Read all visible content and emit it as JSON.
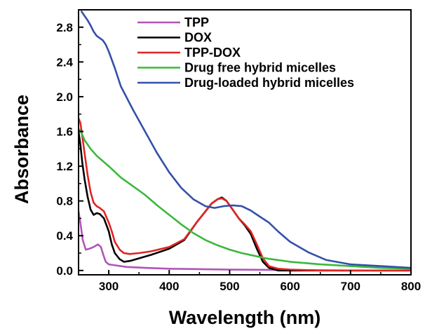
{
  "chart_data": {
    "type": "line",
    "title": "",
    "xlabel": "Wavelength (nm)",
    "ylabel": "Absorbance",
    "xlim": [
      250,
      800
    ],
    "ylim": [
      -0.05,
      3.0
    ],
    "xticks": [
      300,
      400,
      500,
      600,
      700,
      800
    ],
    "xtick_labels": [
      "300",
      "400",
      "500",
      "600",
      "700",
      "800"
    ],
    "yticks": [
      0.0,
      0.4,
      0.8,
      1.2,
      1.6,
      2.0,
      2.4,
      2.8
    ],
    "ytick_labels": [
      "0.0",
      "0.4",
      "0.8",
      "1.2",
      "1.6",
      "2.0",
      "2.4",
      "2.8"
    ],
    "grid": false,
    "legend_position": "top-right",
    "series": [
      {
        "name": "TPP",
        "color": "#b054b8",
        "x": [
          250,
          253,
          257,
          262,
          268,
          275,
          282,
          287,
          291,
          295,
          300,
          310,
          330,
          360,
          400,
          450,
          500,
          600,
          700,
          800
        ],
        "y": [
          0.68,
          0.55,
          0.35,
          0.24,
          0.25,
          0.27,
          0.3,
          0.27,
          0.18,
          0.1,
          0.07,
          0.06,
          0.04,
          0.03,
          0.02,
          0.015,
          0.01,
          0.005,
          0.0,
          0.0
        ]
      },
      {
        "name": "DOX",
        "color": "#000000",
        "x": [
          250,
          253,
          256,
          260,
          265,
          270,
          275,
          280,
          285,
          292,
          300,
          305,
          310,
          318,
          325,
          335,
          350,
          370,
          400,
          425,
          445,
          460,
          470,
          480,
          487,
          495,
          505,
          515,
          525,
          535,
          545,
          555,
          565,
          580,
          600,
          650,
          700,
          800
        ],
        "y": [
          1.6,
          1.45,
          1.25,
          1.05,
          0.85,
          0.7,
          0.64,
          0.66,
          0.65,
          0.6,
          0.45,
          0.3,
          0.2,
          0.13,
          0.1,
          0.11,
          0.14,
          0.18,
          0.25,
          0.35,
          0.55,
          0.68,
          0.77,
          0.82,
          0.84,
          0.8,
          0.7,
          0.6,
          0.52,
          0.42,
          0.25,
          0.1,
          0.03,
          0.0,
          0.0,
          0.0,
          0.0,
          0.0
        ]
      },
      {
        "name": "TPP-DOX",
        "color": "#e02424",
        "x": [
          250,
          253,
          256,
          260,
          265,
          270,
          275,
          280,
          285,
          292,
          300,
          305,
          310,
          318,
          325,
          335,
          350,
          370,
          400,
          425,
          445,
          460,
          470,
          480,
          487,
          495,
          505,
          515,
          525,
          535,
          545,
          555,
          565,
          580,
          600,
          650,
          700,
          800
        ],
        "y": [
          1.75,
          1.7,
          1.55,
          1.35,
          1.1,
          0.9,
          0.78,
          0.74,
          0.72,
          0.68,
          0.55,
          0.45,
          0.33,
          0.24,
          0.2,
          0.19,
          0.2,
          0.22,
          0.27,
          0.36,
          0.55,
          0.68,
          0.77,
          0.82,
          0.83,
          0.8,
          0.7,
          0.6,
          0.53,
          0.45,
          0.3,
          0.14,
          0.05,
          0.02,
          0.01,
          0.0,
          0.0,
          0.0
        ]
      },
      {
        "name": "Drug free hybrid micelles",
        "color": "#3cb83c",
        "x": [
          250,
          252,
          255,
          260,
          270,
          280,
          300,
          320,
          340,
          360,
          380,
          400,
          420,
          440,
          460,
          480,
          500,
          520,
          540,
          560,
          580,
          600,
          650,
          700,
          750,
          800
        ],
        "y": [
          1.6,
          1.62,
          1.58,
          1.5,
          1.4,
          1.32,
          1.2,
          1.07,
          0.97,
          0.87,
          0.75,
          0.64,
          0.53,
          0.43,
          0.35,
          0.29,
          0.24,
          0.2,
          0.17,
          0.14,
          0.12,
          0.1,
          0.07,
          0.05,
          0.03,
          0.02
        ]
      },
      {
        "name": "Drug-loaded hybrid micelles",
        "color": "#3450a8",
        "x": [
          255,
          260,
          265,
          270,
          275,
          280,
          290,
          295,
          300,
          310,
          320,
          340,
          360,
          380,
          400,
          420,
          440,
          460,
          475,
          490,
          505,
          520,
          535,
          550,
          565,
          580,
          600,
          630,
          660,
          700,
          750,
          800
        ],
        "y": [
          2.98,
          2.93,
          2.88,
          2.82,
          2.75,
          2.7,
          2.65,
          2.6,
          2.52,
          2.33,
          2.12,
          1.85,
          1.6,
          1.35,
          1.13,
          0.95,
          0.82,
          0.74,
          0.72,
          0.74,
          0.75,
          0.74,
          0.69,
          0.62,
          0.55,
          0.45,
          0.33,
          0.21,
          0.12,
          0.07,
          0.05,
          0.03
        ]
      }
    ]
  }
}
